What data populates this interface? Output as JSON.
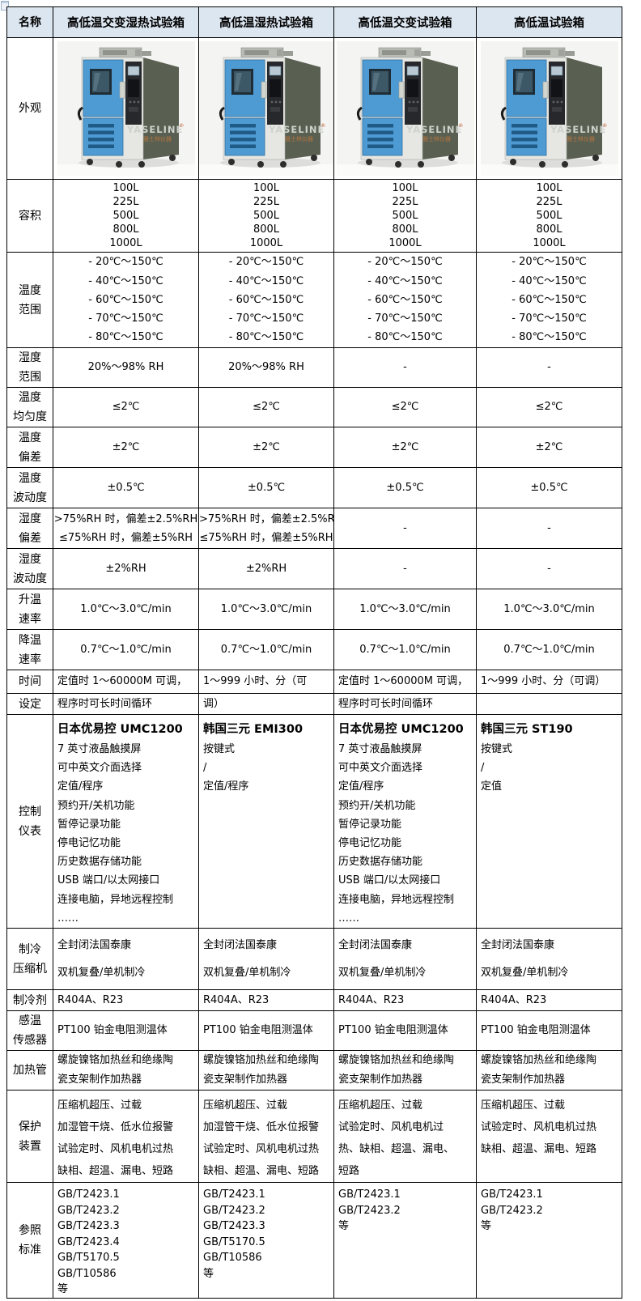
{
  "brand": {
    "logo": "YASELINE",
    "logo_mark": "®",
    "logo_sub": "雅士林仪器"
  },
  "colors": {
    "header_bg": "#dce6f1",
    "border": "#000000",
    "chamber_blue": "#4e9bd3",
    "louver_blue": "#205a86",
    "body_gray": "#e6e7e3",
    "side_gray": "#596052",
    "logo_gray": "#ced2cc",
    "logo_orange": "#b5743e"
  },
  "table": {
    "rows": [
      {
        "id": "name",
        "kind": "header",
        "label": [
          "名称"
        ],
        "cells": [
          "高低温交变湿热试验箱",
          "高低温湿热试验箱",
          "高低温交变试验箱",
          "高低温试验箱"
        ]
      },
      {
        "id": "appearance",
        "kind": "image",
        "label": [
          "外观"
        ]
      },
      {
        "id": "volume",
        "kind": "text",
        "label": [
          "容积"
        ],
        "cells": [
          {
            "lines": [
              "100L",
              "225L",
              "500L",
              "800L",
              "1000L"
            ]
          },
          {
            "lines": [
              "100L",
              "225L",
              "500L",
              "800L",
              "1000L"
            ]
          },
          {
            "lines": [
              "100L",
              "225L",
              "500L",
              "800L",
              "1000L"
            ]
          },
          {
            "lines": [
              "100L",
              "225L",
              "500L",
              "800L",
              "1000L"
            ]
          }
        ]
      },
      {
        "id": "temp-range",
        "kind": "text",
        "label": [
          "温度",
          "范围"
        ],
        "cells": [
          {
            "lines": [
              "- 20℃～150℃",
              "- 40℃～150℃",
              "- 60℃～150℃",
              "- 70℃～150℃",
              "- 80℃～150℃"
            ]
          },
          {
            "lines": [
              "- 20℃～150℃",
              "- 40℃～150℃",
              "- 60℃～150℃",
              "- 70℃～150℃",
              "- 80℃～150℃"
            ]
          },
          {
            "lines": [
              "- 20℃～150℃",
              "- 40℃～150℃",
              "- 60℃～150℃",
              "- 70℃～150℃",
              "- 80℃～150℃"
            ]
          },
          {
            "lines": [
              "- 20℃～150℃",
              "- 40℃～150℃",
              "- 60℃～150℃",
              "- 70℃～150℃",
              "- 80℃～150℃"
            ]
          }
        ]
      },
      {
        "id": "humidity-range",
        "kind": "text",
        "label": [
          "湿度",
          "范围"
        ],
        "cells": [
          {
            "lines": [
              "20%～98% RH"
            ]
          },
          {
            "lines": [
              "20%～98% RH"
            ]
          },
          {
            "lines": [
              "-"
            ]
          },
          {
            "lines": [
              "-"
            ]
          }
        ]
      },
      {
        "id": "temp-uniformity",
        "kind": "text",
        "label": [
          "温度",
          "均匀度"
        ],
        "cells": [
          {
            "lines": [
              "≤2℃"
            ]
          },
          {
            "lines": [
              "≤2℃"
            ]
          },
          {
            "lines": [
              "≤2℃"
            ]
          },
          {
            "lines": [
              "≤2℃"
            ]
          }
        ]
      },
      {
        "id": "temp-deviation",
        "kind": "text",
        "label": [
          "温度",
          "偏差"
        ],
        "cells": [
          {
            "lines": [
              "±2℃"
            ]
          },
          {
            "lines": [
              "±2℃"
            ]
          },
          {
            "lines": [
              "±2℃"
            ]
          },
          {
            "lines": [
              "±2℃"
            ]
          }
        ]
      },
      {
        "id": "temp-fluctuation",
        "kind": "text",
        "label": [
          "温度",
          "波动度"
        ],
        "cells": [
          {
            "lines": [
              "±0.5℃"
            ]
          },
          {
            "lines": [
              "±0.5℃"
            ]
          },
          {
            "lines": [
              "±0.5℃"
            ]
          },
          {
            "lines": [
              "±0.5℃"
            ]
          }
        ]
      },
      {
        "id": "humidity-deviation",
        "kind": "text",
        "label": [
          "湿度",
          "偏差"
        ],
        "cells": [
          {
            "lines": [
              ">75%RH 时，偏差±2.5%RH",
              "≤75%RH 时，偏差±5%RH"
            ]
          },
          {
            "lines": [
              ">75%RH 时，偏差±2.5%RH",
              "≤75%RH 时，偏差±5%RH"
            ]
          },
          {
            "lines": [
              "-"
            ]
          },
          {
            "lines": [
              "-"
            ]
          }
        ]
      },
      {
        "id": "humidity-fluctuation",
        "kind": "text",
        "label": [
          "湿度",
          "波动度"
        ],
        "cells": [
          {
            "lines": [
              "±2%RH"
            ]
          },
          {
            "lines": [
              "±2%RH"
            ]
          },
          {
            "lines": [
              "-"
            ]
          },
          {
            "lines": [
              "-"
            ]
          }
        ]
      },
      {
        "id": "heating-rate",
        "kind": "text",
        "label": [
          "升温",
          "速率"
        ],
        "cells": [
          {
            "lines": [
              "1.0℃～3.0℃/min"
            ]
          },
          {
            "lines": [
              "1.0℃～3.0℃/min"
            ]
          },
          {
            "lines": [
              "1.0℃～3.0℃/min"
            ]
          },
          {
            "lines": [
              "1.0℃～3.0℃/min"
            ]
          }
        ]
      },
      {
        "id": "cooling-rate",
        "kind": "text",
        "label": [
          "降温",
          "速率"
        ],
        "cells": [
          {
            "lines": [
              "0.7℃～1.0℃/min"
            ]
          },
          {
            "lines": [
              "0.7℃～1.0℃/min"
            ]
          },
          {
            "lines": [
              "0.7℃～1.0℃/min"
            ]
          },
          {
            "lines": [
              "0.7℃～1.0℃/min"
            ]
          }
        ]
      },
      {
        "id": "time",
        "kind": "text",
        "label": [
          "时间"
        ],
        "cells": [
          {
            "lines": [
              "定值时 1～60000M 可调，"
            ]
          },
          {
            "lines": [
              "1～999 小时、分（可"
            ]
          },
          {
            "lines": [
              "定值时 1～60000M 可调，"
            ]
          },
          {
            "lines": [
              "1～999 小时、分（可调）"
            ]
          }
        ]
      },
      {
        "id": "setting",
        "kind": "text",
        "label": [
          "设定"
        ],
        "cells": [
          {
            "lines": [
              "程序时可长时间循环"
            ]
          },
          {
            "lines": [
              "调）"
            ]
          },
          {
            "lines": [
              "程序时可长时间循环"
            ]
          },
          {
            "lines": [
              ""
            ]
          }
        ]
      },
      {
        "id": "controller",
        "kind": "text",
        "label": [
          "控制",
          "仪表"
        ],
        "cells": [
          {
            "title": "日本优易控 UMC1200",
            "lines": [
              "7 英寸液晶触摸屏",
              "可中英文介面选择",
              "定值/程序",
              "预约开/关机功能",
              "暂停记录功能",
              "停电记忆功能",
              "历史数据存储功能",
              "USB 端口/以太网接口",
              "连接电脑，异地远程控制",
              "……"
            ]
          },
          {
            "title": "韩国三元 EMI300",
            "lines": [
              "按键式",
              "/",
              "定值/程序"
            ]
          },
          {
            "title": "日本优易控 UMC1200",
            "lines": [
              "7 英寸液晶触摸屏",
              "可中英文介面选择",
              "定值/程序",
              "预约开/关机功能",
              "暂停记录功能",
              "停电记忆功能",
              "历史数据存储功能",
              "USB 端口/以太网接口",
              "连接电脑，异地远程控制",
              "……"
            ]
          },
          {
            "title": "韩国三元 ST190",
            "lines": [
              "按键式",
              "/",
              "定值"
            ]
          }
        ]
      },
      {
        "id": "compressor",
        "kind": "text",
        "label": [
          "制冷",
          "压缩机"
        ],
        "cells": [
          {
            "lines": [
              "全封闭法国泰康",
              "双机复叠/单机制冷"
            ]
          },
          {
            "lines": [
              "全封闭法国泰康",
              "双机复叠/单机制冷"
            ]
          },
          {
            "lines": [
              "全封闭法国泰康",
              "双机复叠/单机制冷"
            ]
          },
          {
            "lines": [
              "全封闭法国泰康",
              "双机复叠/单机制冷"
            ]
          }
        ]
      },
      {
        "id": "refrigerant",
        "kind": "text",
        "label": [
          "制冷剂"
        ],
        "cells": [
          {
            "lines": [
              "R404A、R23"
            ]
          },
          {
            "lines": [
              "R404A、R23"
            ]
          },
          {
            "lines": [
              "R404A、R23"
            ]
          },
          {
            "lines": [
              "R404A、R23"
            ]
          }
        ]
      },
      {
        "id": "temp-sensor",
        "kind": "text",
        "label": [
          "感温",
          "传感器"
        ],
        "cells": [
          {
            "lines": [
              "PT100 铂金电阻测温体"
            ]
          },
          {
            "lines": [
              "PT100 铂金电阻测温体"
            ]
          },
          {
            "lines": [
              "PT100 铂金电阻测温体"
            ]
          },
          {
            "lines": [
              "PT100 铂金电阻测温体"
            ]
          }
        ]
      },
      {
        "id": "heater",
        "kind": "text",
        "label": [
          "加热管"
        ],
        "cells": [
          {
            "lines": [
              "螺旋镍铬加热丝和绝缘陶",
              "瓷支架制作加热器"
            ]
          },
          {
            "lines": [
              "螺旋镍铬加热丝和绝缘陶",
              "瓷支架制作加热器"
            ]
          },
          {
            "lines": [
              "螺旋镍铬加热丝和绝缘陶",
              "瓷支架制作加热器"
            ]
          },
          {
            "lines": [
              "螺旋镍铬加热丝和绝缘陶",
              "瓷支架制作加热器"
            ]
          }
        ]
      },
      {
        "id": "protection",
        "kind": "text",
        "label": [
          "保护",
          "装置"
        ],
        "cells": [
          {
            "lines": [
              "压缩机超压、过载",
              "加湿管干烧、低水位报警",
              "试验定时、风机电机过热",
              "缺相、超温、漏电、短路"
            ]
          },
          {
            "lines": [
              "压缩机超压、过载",
              "加湿管干烧、低水位报警",
              "试验定时、风机电机过热",
              "缺相、超温、漏电、短路"
            ]
          },
          {
            "lines": [
              "压缩机超压、过载",
              "试验定时、风机电机过",
              "热、缺相、超温、漏电、",
              "短路"
            ]
          },
          {
            "lines": [
              "压缩机超压、过载",
              "试验定时、风机电机过热",
              "缺相、超温、漏电、短路"
            ]
          }
        ]
      },
      {
        "id": "standards",
        "kind": "text",
        "label": [
          "参照",
          "标准"
        ],
        "cells": [
          {
            "lines": [
              "GB/T2423.1",
              "GB/T2423.2",
              "GB/T2423.3",
              "GB/T2423.4",
              "GB/T5170.5",
              "GB/T10586",
              "等"
            ]
          },
          {
            "lines": [
              "GB/T2423.1",
              "GB/T2423.2",
              "GB/T2423.3",
              "GB/T5170.5",
              "GB/T10586",
              "等"
            ]
          },
          {
            "lines": [
              "GB/T2423.1",
              "GB/T2423.2",
              "等"
            ]
          },
          {
            "lines": [
              "GB/T2423.1",
              "GB/T2423.2",
              "等"
            ]
          }
        ]
      }
    ]
  }
}
